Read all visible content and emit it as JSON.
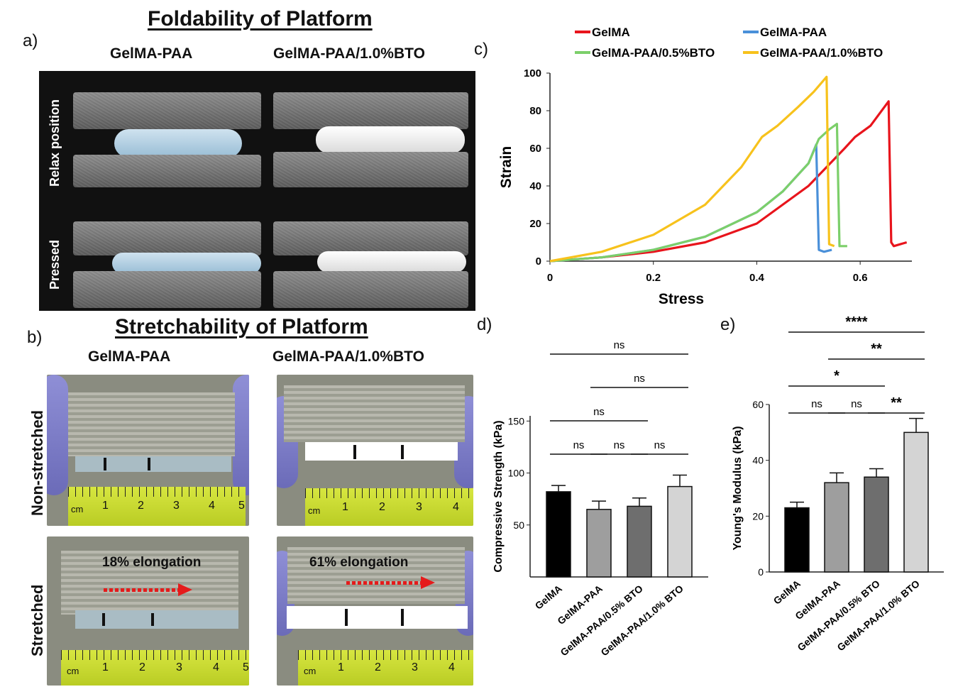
{
  "panels": {
    "a": "a)",
    "b": "b)",
    "c": "c)",
    "d": "d)",
    "e": "e)"
  },
  "fold": {
    "title": "Foldability of Platform",
    "col_left": "GelMA-PAA",
    "col_right": "GelMA-PAA/1.0%BTO",
    "row_top": "Relax position",
    "row_bottom": "Pressed"
  },
  "stretch": {
    "title": "Stretchability of Platform",
    "col_left": "GelMA-PAA",
    "col_right": "GelMA-PAA/1.0%BTO",
    "row_top": "Non-stretched",
    "row_bottom": "Stretched",
    "elong_left": "18% elongation",
    "elong_right": "61% elongation",
    "ruler_unit": "cm",
    "ruler_ticks": [
      "1",
      "2",
      "3",
      "4",
      "5"
    ]
  },
  "colors": {
    "gelma": "#e8141c",
    "gelma_paa": "#4a90d9",
    "bto05": "#7ccf6a",
    "bto10": "#f7c21c"
  },
  "chart_data": [
    {
      "type": "line",
      "xlabel": "Stress",
      "ylabel": "Strain",
      "xlim": [
        0,
        0.7
      ],
      "ylim": [
        0,
        100
      ],
      "xticks": [
        "0",
        "0.2",
        "0.4",
        "0.6"
      ],
      "yticks": [
        "0",
        "20",
        "40",
        "60",
        "80",
        "100"
      ],
      "legend": "top",
      "series": [
        {
          "name": "GelMA",
          "color": "#e8141c",
          "points": [
            [
              0,
              0
            ],
            [
              0.1,
              2
            ],
            [
              0.2,
              5
            ],
            [
              0.3,
              10
            ],
            [
              0.4,
              20
            ],
            [
              0.5,
              40
            ],
            [
              0.57,
              60
            ],
            [
              0.59,
              66
            ],
            [
              0.62,
              72
            ],
            [
              0.655,
              85
            ],
            [
              0.66,
              10
            ],
            [
              0.665,
              8
            ],
            [
              0.69,
              10
            ]
          ]
        },
        {
          "name": "GelMA-PAA",
          "color": "#4a90d9",
          "points": [
            [
              0,
              0
            ],
            [
              0.1,
              2
            ],
            [
              0.2,
              6
            ],
            [
              0.3,
              13
            ],
            [
              0.4,
              26
            ],
            [
              0.45,
              37
            ],
            [
              0.5,
              52
            ],
            [
              0.515,
              62
            ],
            [
              0.52,
              6
            ],
            [
              0.53,
              5
            ],
            [
              0.545,
              6
            ]
          ]
        },
        {
          "name": "GelMA-PAA/0.5%BTO",
          "color": "#7ccf6a",
          "points": [
            [
              0,
              0
            ],
            [
              0.1,
              2
            ],
            [
              0.2,
              6
            ],
            [
              0.3,
              13
            ],
            [
              0.4,
              26
            ],
            [
              0.45,
              37
            ],
            [
              0.5,
              52
            ],
            [
              0.52,
              65
            ],
            [
              0.54,
              70
            ],
            [
              0.555,
              73
            ],
            [
              0.56,
              8
            ],
            [
              0.575,
              8
            ]
          ]
        },
        {
          "name": "GelMA-PAA/1.0%BTO",
          "color": "#f7c21c",
          "points": [
            [
              0,
              0
            ],
            [
              0.1,
              5
            ],
            [
              0.2,
              14
            ],
            [
              0.3,
              30
            ],
            [
              0.37,
              50
            ],
            [
              0.41,
              66
            ],
            [
              0.44,
              72
            ],
            [
              0.48,
              82
            ],
            [
              0.51,
              90
            ],
            [
              0.535,
              98
            ],
            [
              0.54,
              9
            ],
            [
              0.55,
              8
            ]
          ]
        }
      ]
    },
    {
      "type": "bar",
      "ylabel": "Compressive Strength (kPa)",
      "categories": [
        "GelMA",
        "GelMA-PAA",
        "GelMA-PAA/0.5% BTO",
        "GelMA-PAA/1.0% BTO"
      ],
      "values": [
        82,
        65,
        68,
        87
      ],
      "errors": [
        6,
        8,
        8,
        11
      ],
      "ylim": [
        0,
        155
      ],
      "yticks": [
        "50",
        "100",
        "150"
      ],
      "colors": [
        "#000000",
        "#9e9e9e",
        "#6e6e6e",
        "#d4d4d4"
      ],
      "significance": [
        {
          "from": 0,
          "to": 1,
          "label": "ns"
        },
        {
          "from": 1,
          "to": 2,
          "label": "ns"
        },
        {
          "from": 2,
          "to": 3,
          "label": "ns"
        },
        {
          "from": 0,
          "to": 2,
          "label": "ns"
        },
        {
          "from": 1,
          "to": 3,
          "label": "ns"
        },
        {
          "from": 0,
          "to": 3,
          "label": "ns"
        }
      ]
    },
    {
      "type": "bar",
      "ylabel": "Young's Modulus (kPa)",
      "categories": [
        "GelMA",
        "GelMA-PAA",
        "GelMA-PAA/0.5% BTO",
        "GelMA-PAA/1.0% BTO"
      ],
      "values": [
        23,
        32,
        34,
        50
      ],
      "errors": [
        2,
        3.5,
        3,
        5
      ],
      "ylim": [
        0,
        60
      ],
      "yticks": [
        "0",
        "20",
        "40",
        "60"
      ],
      "colors": [
        "#000000",
        "#9e9e9e",
        "#6e6e6e",
        "#d4d4d4"
      ],
      "significance": [
        {
          "from": 0,
          "to": 1,
          "label": "ns"
        },
        {
          "from": 1,
          "to": 2,
          "label": "ns"
        },
        {
          "from": 2,
          "to": 3,
          "label": "**"
        },
        {
          "from": 0,
          "to": 2,
          "label": "*"
        },
        {
          "from": 1,
          "to": 3,
          "label": "**"
        },
        {
          "from": 0,
          "to": 3,
          "label": "****"
        }
      ]
    }
  ]
}
